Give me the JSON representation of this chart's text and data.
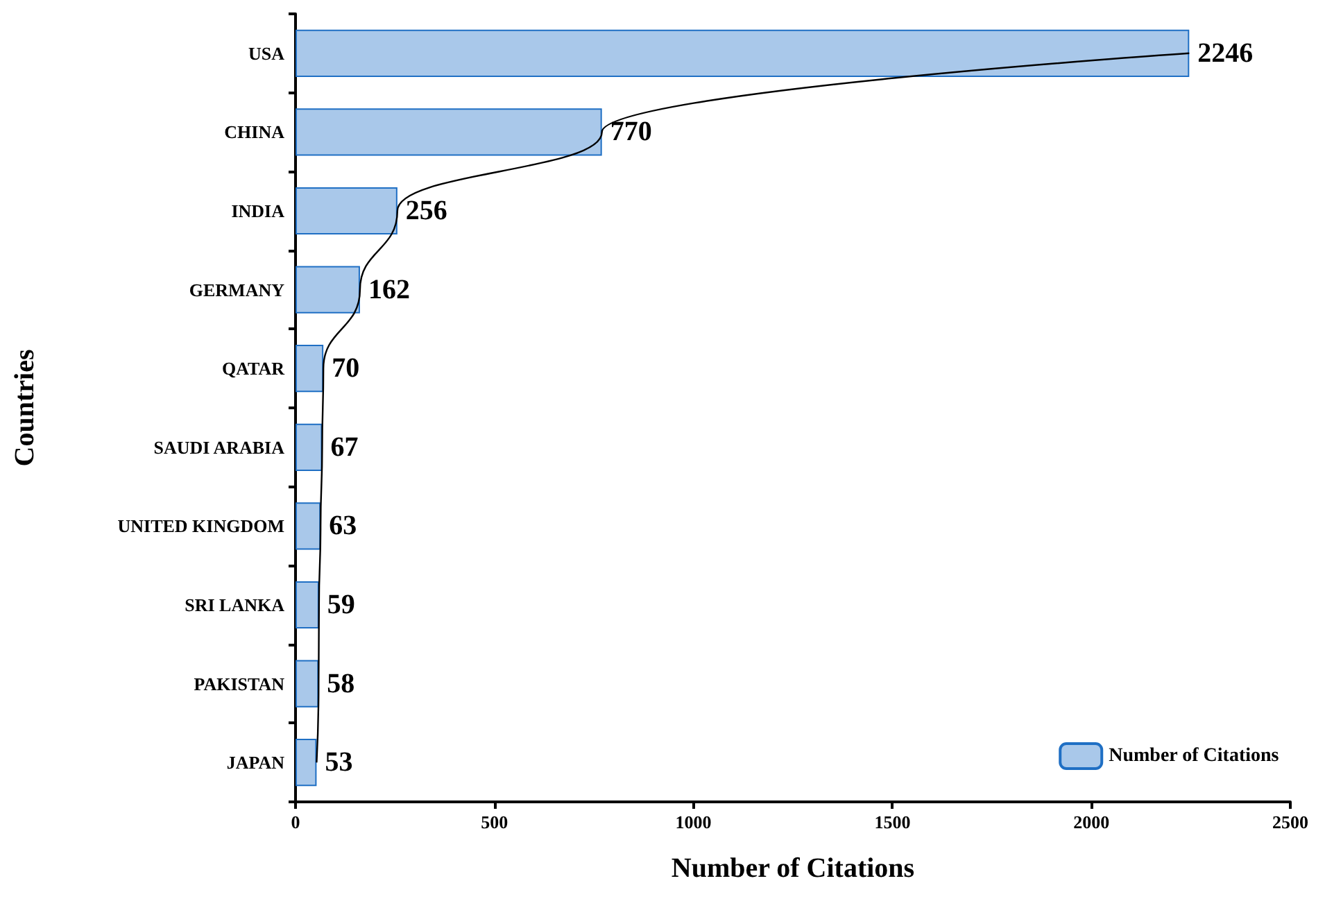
{
  "chart_data": {
    "type": "bar",
    "orientation": "horizontal",
    "xlabel": "Number of Citations",
    "ylabel": "Countries",
    "categories": [
      "USA",
      "CHINA",
      "INDIA",
      "GERMANY",
      "QATAR",
      "SAUDI ARABIA",
      "UNITED KINGDOM",
      "SRI LANKA",
      "PAKISTAN",
      "JAPAN"
    ],
    "series": [
      {
        "name": "Number of Citations",
        "color": "#a9c8ea",
        "values": [
          2246,
          770,
          256,
          162,
          70,
          67,
          63,
          59,
          58,
          53
        ],
        "value_labels": [
          "2246",
          "770",
          "256",
          "162",
          "70",
          "67",
          "63",
          "59",
          "58",
          "53"
        ]
      },
      {
        "type": "line",
        "color": "#000000",
        "values": [
          2246,
          770,
          256,
          162,
          70,
          67,
          63,
          59,
          58,
          53
        ]
      }
    ],
    "xlim": [
      0,
      2500
    ],
    "xticks": [
      0,
      500,
      1000,
      1500,
      2000,
      2500
    ],
    "grid": false,
    "legend": "bottom right",
    "marker": "none"
  }
}
